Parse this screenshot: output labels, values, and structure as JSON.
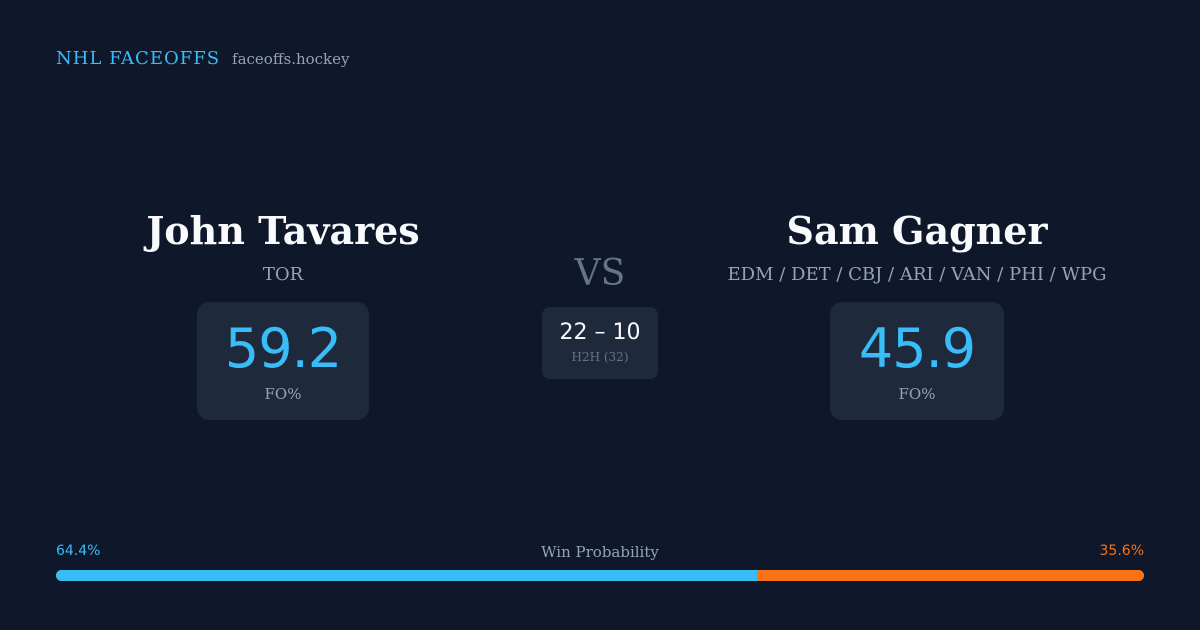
{
  "brand": {
    "title": "NHL FACEOFFS",
    "url": "faceoffs.hockey"
  },
  "player_left": {
    "name": "John Tavares",
    "team": "TOR",
    "stat_value": "59.2",
    "stat_label": "FO%"
  },
  "player_right": {
    "name": "Sam Gagner",
    "team": "EDM / DET / CBJ / ARI / VAN / PHI / WPG",
    "stat_value": "45.9",
    "stat_label": "FO%"
  },
  "versus": {
    "label": "VS",
    "h2h_score": "22 – 10",
    "h2h_label": "H2H (32)"
  },
  "win_probability": {
    "label": "Win Probability",
    "left_text": "64.4%",
    "right_text": "35.6%",
    "left_fraction": 0.644,
    "right_fraction": 0.356,
    "left_color": "#38bdf8",
    "right_color": "#f97316"
  }
}
